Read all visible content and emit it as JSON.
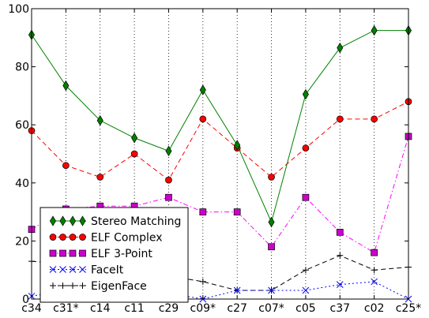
{
  "chart_data": {
    "type": "line",
    "categories": [
      "c34",
      "c31*",
      "c14",
      "c11",
      "c29",
      "c09*",
      "c27",
      "c07*",
      "c05",
      "c37",
      "c02",
      "c25*"
    ],
    "ylim": [
      0,
      100
    ],
    "yticks": [
      "0",
      "20",
      "40",
      "60",
      "80",
      "100"
    ],
    "grid": "vertical dotted",
    "legend_position": "lower-left",
    "series": [
      {
        "name": "Stereo Matching",
        "color": "#008000",
        "line_style": "solid",
        "marker": "diamond",
        "marker_color": "#008000",
        "values": [
          91,
          73.5,
          61.5,
          55.5,
          51,
          72,
          53,
          26.5,
          70.5,
          86.5,
          92.5,
          92.5
        ]
      },
      {
        "name": "ELF Complex",
        "color": "#ff0000",
        "line_style": "dashed",
        "marker": "circle",
        "marker_color": "#ff0000",
        "values": [
          58,
          46,
          42,
          50,
          41,
          62,
          52,
          42,
          52,
          62,
          62,
          68
        ]
      },
      {
        "name": "ELF 3-Point",
        "color": "#ff00ff",
        "line_style": "dash-dot",
        "marker": "square",
        "marker_color": "#cc00cc",
        "values": [
          24,
          31,
          32,
          32,
          35,
          30,
          30,
          18,
          35,
          23,
          16,
          56
        ]
      },
      {
        "name": "FaceIt",
        "color": "#0000ff",
        "line_style": "dotted",
        "marker": "x",
        "marker_color": "#0000ff",
        "values": [
          1,
          3,
          3,
          4,
          2,
          0,
          3,
          3,
          3,
          5,
          6,
          0
        ]
      },
      {
        "name": "EigenFace",
        "color": "#000000",
        "line_style": "dashed",
        "marker": "plus",
        "marker_color": "#000000",
        "values": [
          13,
          12,
          10,
          9,
          8,
          6,
          3,
          3,
          10,
          15,
          10,
          11
        ]
      }
    ]
  }
}
